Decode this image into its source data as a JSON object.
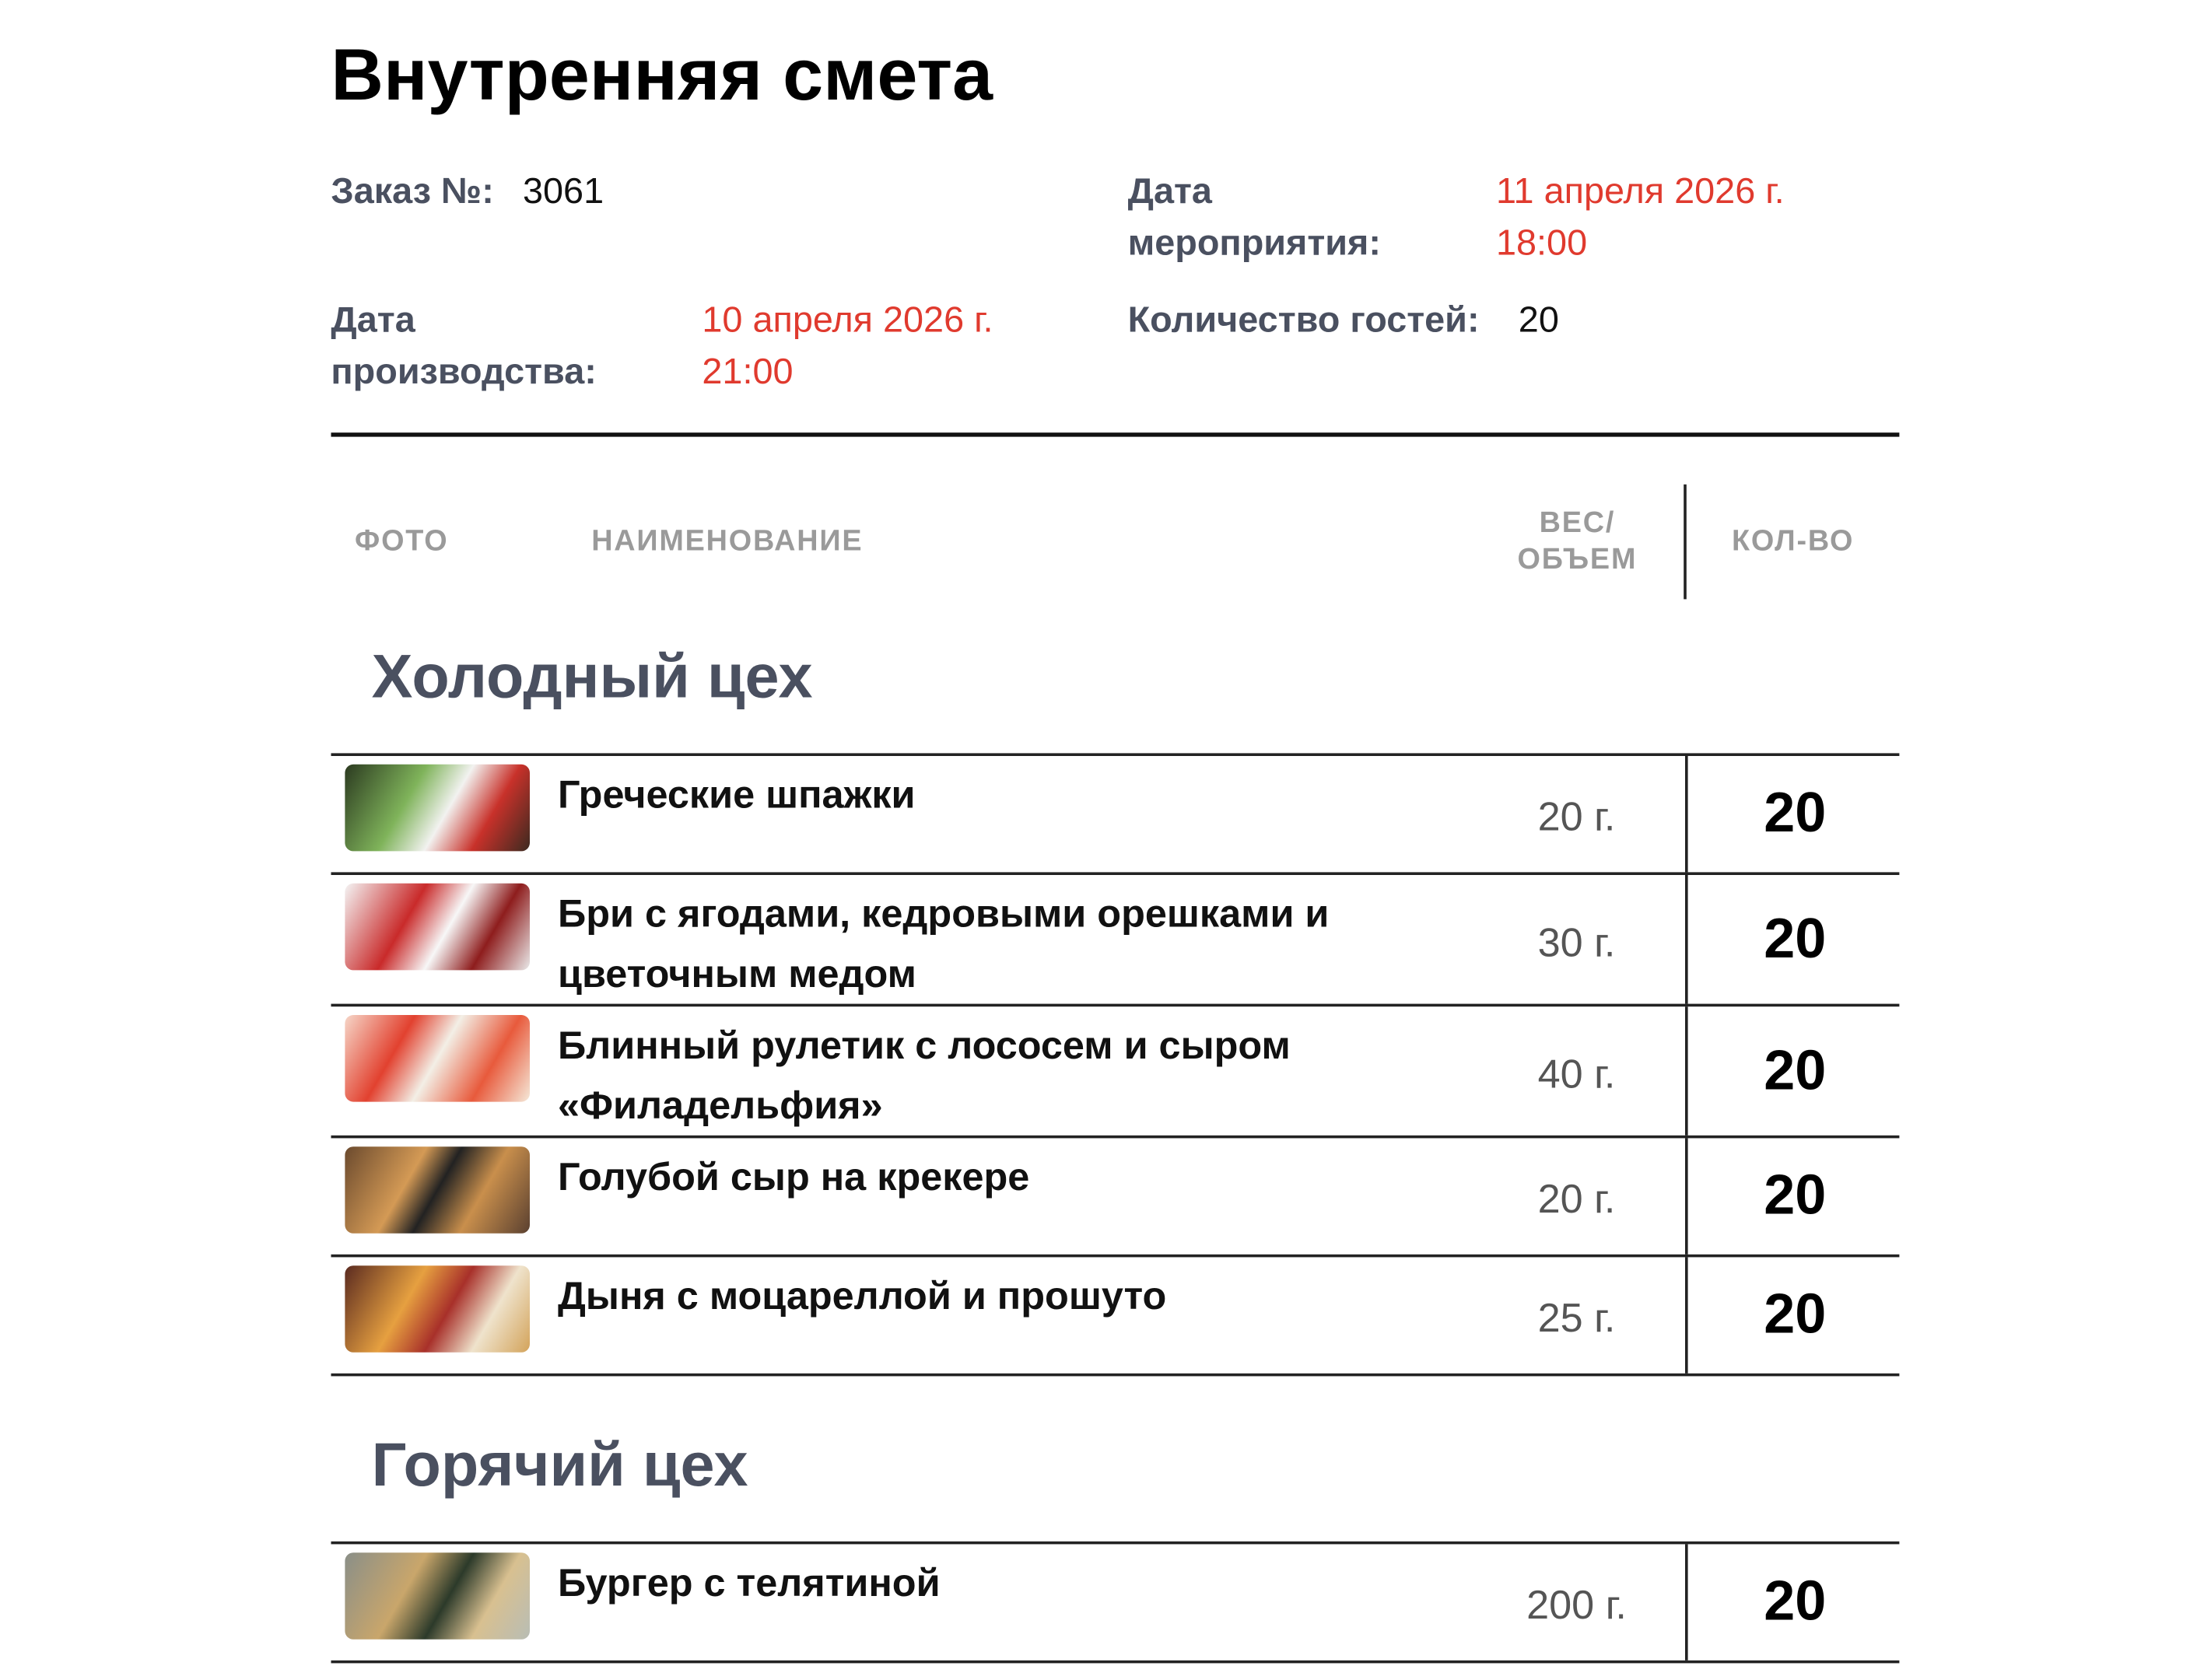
{
  "header": {
    "title": "Внутренняя смета",
    "order_label": "Заказ №:",
    "order_number": "3061",
    "event_date_label": "Дата мероприятия:",
    "event_date": "11 апреля 2026 г. 18:00",
    "production_date_label": "Дата производства:",
    "production_date": "10 апреля 2026 г. 21:00",
    "guests_label": "Количество гостей:",
    "guests": "20"
  },
  "table": {
    "columns": [
      "ФОТО",
      "НАИМЕНОВАНИЕ",
      "ВЕС/ ОБЪЕМ",
      "КОЛ-ВО"
    ],
    "sections": [
      {
        "title": "Холодный цех",
        "rows": [
          {
            "name": "Греческие шпажки",
            "weight": "20 г.",
            "qty": 20
          },
          {
            "name": "Бри с ягодами, кедровыми орешками и цветочным медом",
            "weight": "30 г.",
            "qty": 20
          },
          {
            "name": "Блинный рулетик с лососем и сыром «Филадельфия»",
            "weight": "40 г.",
            "qty": 20
          },
          {
            "name": "Голубой сыр на крекере",
            "weight": "20 г.",
            "qty": 20
          },
          {
            "name": "Дыня с моцареллой и прошуто",
            "weight": "25 г.",
            "qty": 20
          }
        ]
      },
      {
        "title": "Горячий цех",
        "rows": [
          {
            "name": "Бургер с телятиной",
            "weight": "200 г.",
            "qty": 20
          }
        ]
      }
    ]
  }
}
